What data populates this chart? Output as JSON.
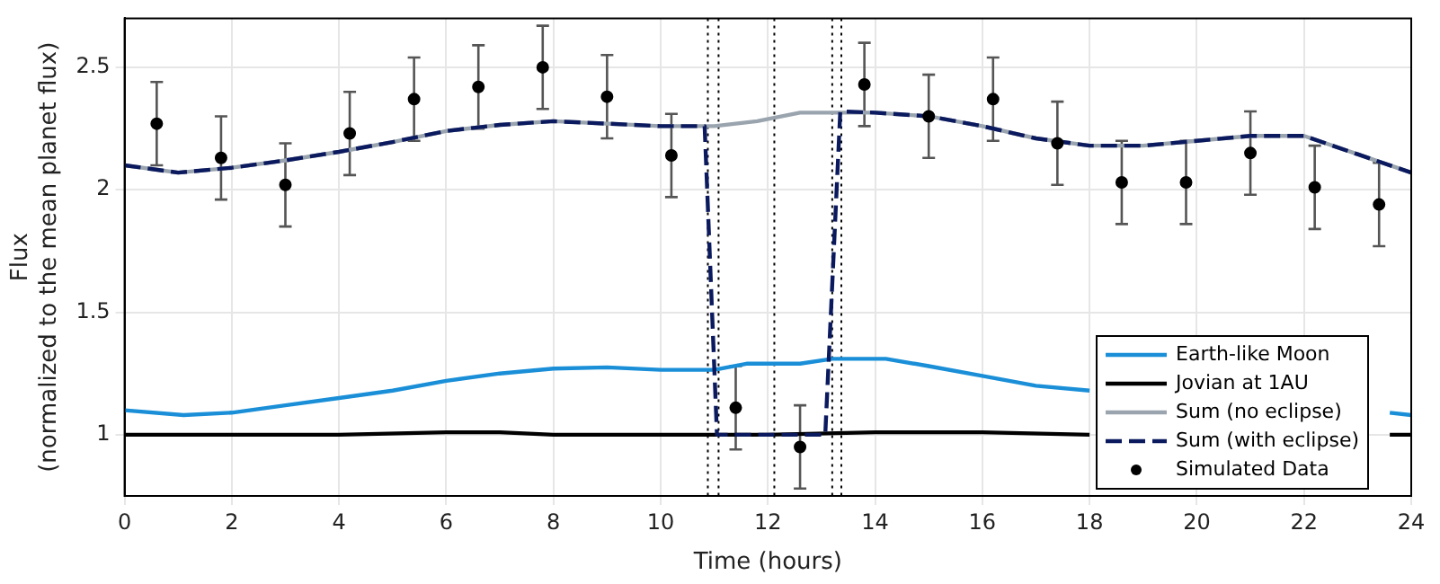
{
  "chart_data": {
    "type": "line",
    "xlabel": "Time (hours)",
    "ylabel": "Flux\n(normalized to the mean planet flux)",
    "xlim": [
      0,
      24
    ],
    "xticks": [
      0,
      2,
      4,
      6,
      8,
      10,
      12,
      14,
      16,
      18,
      20,
      22,
      24
    ],
    "ylim": [
      0.75,
      2.7
    ],
    "yticks": [
      1,
      1.5,
      2,
      2.5
    ],
    "grid": true,
    "legend": "bottom right",
    "series": [
      {
        "name": "Earth-like Moon",
        "color": "#1a8fd8",
        "line_style": "solid",
        "marker": "none",
        "x": [
          0,
          1.1,
          2,
          3,
          4,
          5,
          6,
          7,
          8,
          9,
          10,
          11,
          11.6,
          12.6,
          13.2,
          14.2,
          15,
          16,
          17,
          18,
          19,
          20,
          21,
          22,
          23.6,
          24
        ],
        "values": [
          1.1,
          1.08,
          1.09,
          1.12,
          1.15,
          1.18,
          1.22,
          1.25,
          1.27,
          1.275,
          1.265,
          1.265,
          1.29,
          1.29,
          1.31,
          1.31,
          1.28,
          1.24,
          1.2,
          1.18,
          null,
          null,
          null,
          null,
          1.09,
          1.08
        ]
      },
      {
        "name": "Jovian at 1AU",
        "color": "#000000",
        "line_style": "solid",
        "marker": "none",
        "x": [
          0,
          2,
          4,
          6,
          7,
          8,
          10,
          12,
          14,
          16,
          18,
          19,
          20,
          22,
          23.6,
          24
        ],
        "values": [
          1,
          1,
          1,
          1.01,
          1.01,
          1,
          1,
          1,
          1.01,
          1.01,
          1,
          null,
          null,
          null,
          1,
          1
        ]
      },
      {
        "name": "Sum (no eclipse)",
        "color": "#9aa4ae",
        "line_style": "solid",
        "marker": "none",
        "x": [
          0,
          1,
          2,
          3,
          4,
          5,
          6,
          7,
          8,
          9,
          10,
          11,
          11.8,
          12.6,
          13.2,
          14,
          15,
          16,
          17,
          18,
          19,
          20,
          21,
          22,
          23,
          24
        ],
        "values": [
          2.1,
          2.07,
          2.09,
          2.12,
          2.155,
          2.195,
          2.24,
          2.265,
          2.28,
          2.27,
          2.26,
          2.26,
          2.28,
          2.315,
          2.315,
          2.315,
          2.3,
          2.26,
          2.21,
          2.18,
          2.18,
          2.2,
          2.22,
          2.22,
          2.145,
          2.07
        ]
      },
      {
        "name": "Sum (with eclipse)",
        "color": "#0b1a5e",
        "line_style": "dashed",
        "marker": "none",
        "x": [
          0,
          1,
          2,
          3,
          4,
          5,
          6,
          7,
          8,
          9,
          10,
          10.82,
          11.05,
          12,
          13.07,
          13.35,
          14,
          15,
          16,
          17,
          18,
          19,
          20,
          21,
          22,
          23,
          24
        ],
        "values": [
          2.1,
          2.07,
          2.09,
          2.12,
          2.155,
          2.195,
          2.24,
          2.265,
          2.28,
          2.27,
          2.26,
          2.26,
          1,
          1,
          1,
          2.32,
          2.315,
          2.3,
          2.26,
          2.21,
          2.18,
          2.18,
          2.2,
          2.22,
          2.22,
          2.145,
          2.07
        ]
      },
      {
        "name": "Simulated Data",
        "type": "scatter",
        "color": "#000000",
        "marker": "circle",
        "x": [
          0.6,
          1.8,
          3,
          4.2,
          5.4,
          6.6,
          7.8,
          9,
          10.2,
          11.4,
          12.6,
          13.8,
          15,
          16.2,
          17.4,
          18.6,
          19.8,
          21,
          22.2,
          23.4
        ],
        "values": [
          2.27,
          2.13,
          2.02,
          2.23,
          2.37,
          2.42,
          2.5,
          2.38,
          2.14,
          1.11,
          0.95,
          2.43,
          2.3,
          2.37,
          2.19,
          2.03,
          2.03,
          2.15,
          2.01,
          1.94
        ],
        "errors": [
          0.17,
          0.17,
          0.17,
          0.17,
          0.17,
          0.17,
          0.17,
          0.17,
          0.17,
          0.17,
          0.17,
          0.17,
          0.17,
          0.17,
          0.17,
          0.17,
          0.17,
          0.17,
          0.17,
          0.17
        ]
      }
    ],
    "ref_lines": [
      {
        "axis": "x",
        "value": 10.88,
        "color": "#000000",
        "line_style": "dotted"
      },
      {
        "axis": "x",
        "value": 11.08,
        "color": "#000000",
        "line_style": "dotted"
      },
      {
        "axis": "x",
        "value": 12.12,
        "color": "#000000",
        "line_style": "dotted"
      },
      {
        "axis": "x",
        "value": 13.2,
        "color": "#000000",
        "line_style": "dotted"
      },
      {
        "axis": "x",
        "value": 13.37,
        "color": "#000000",
        "line_style": "dotted"
      }
    ]
  }
}
